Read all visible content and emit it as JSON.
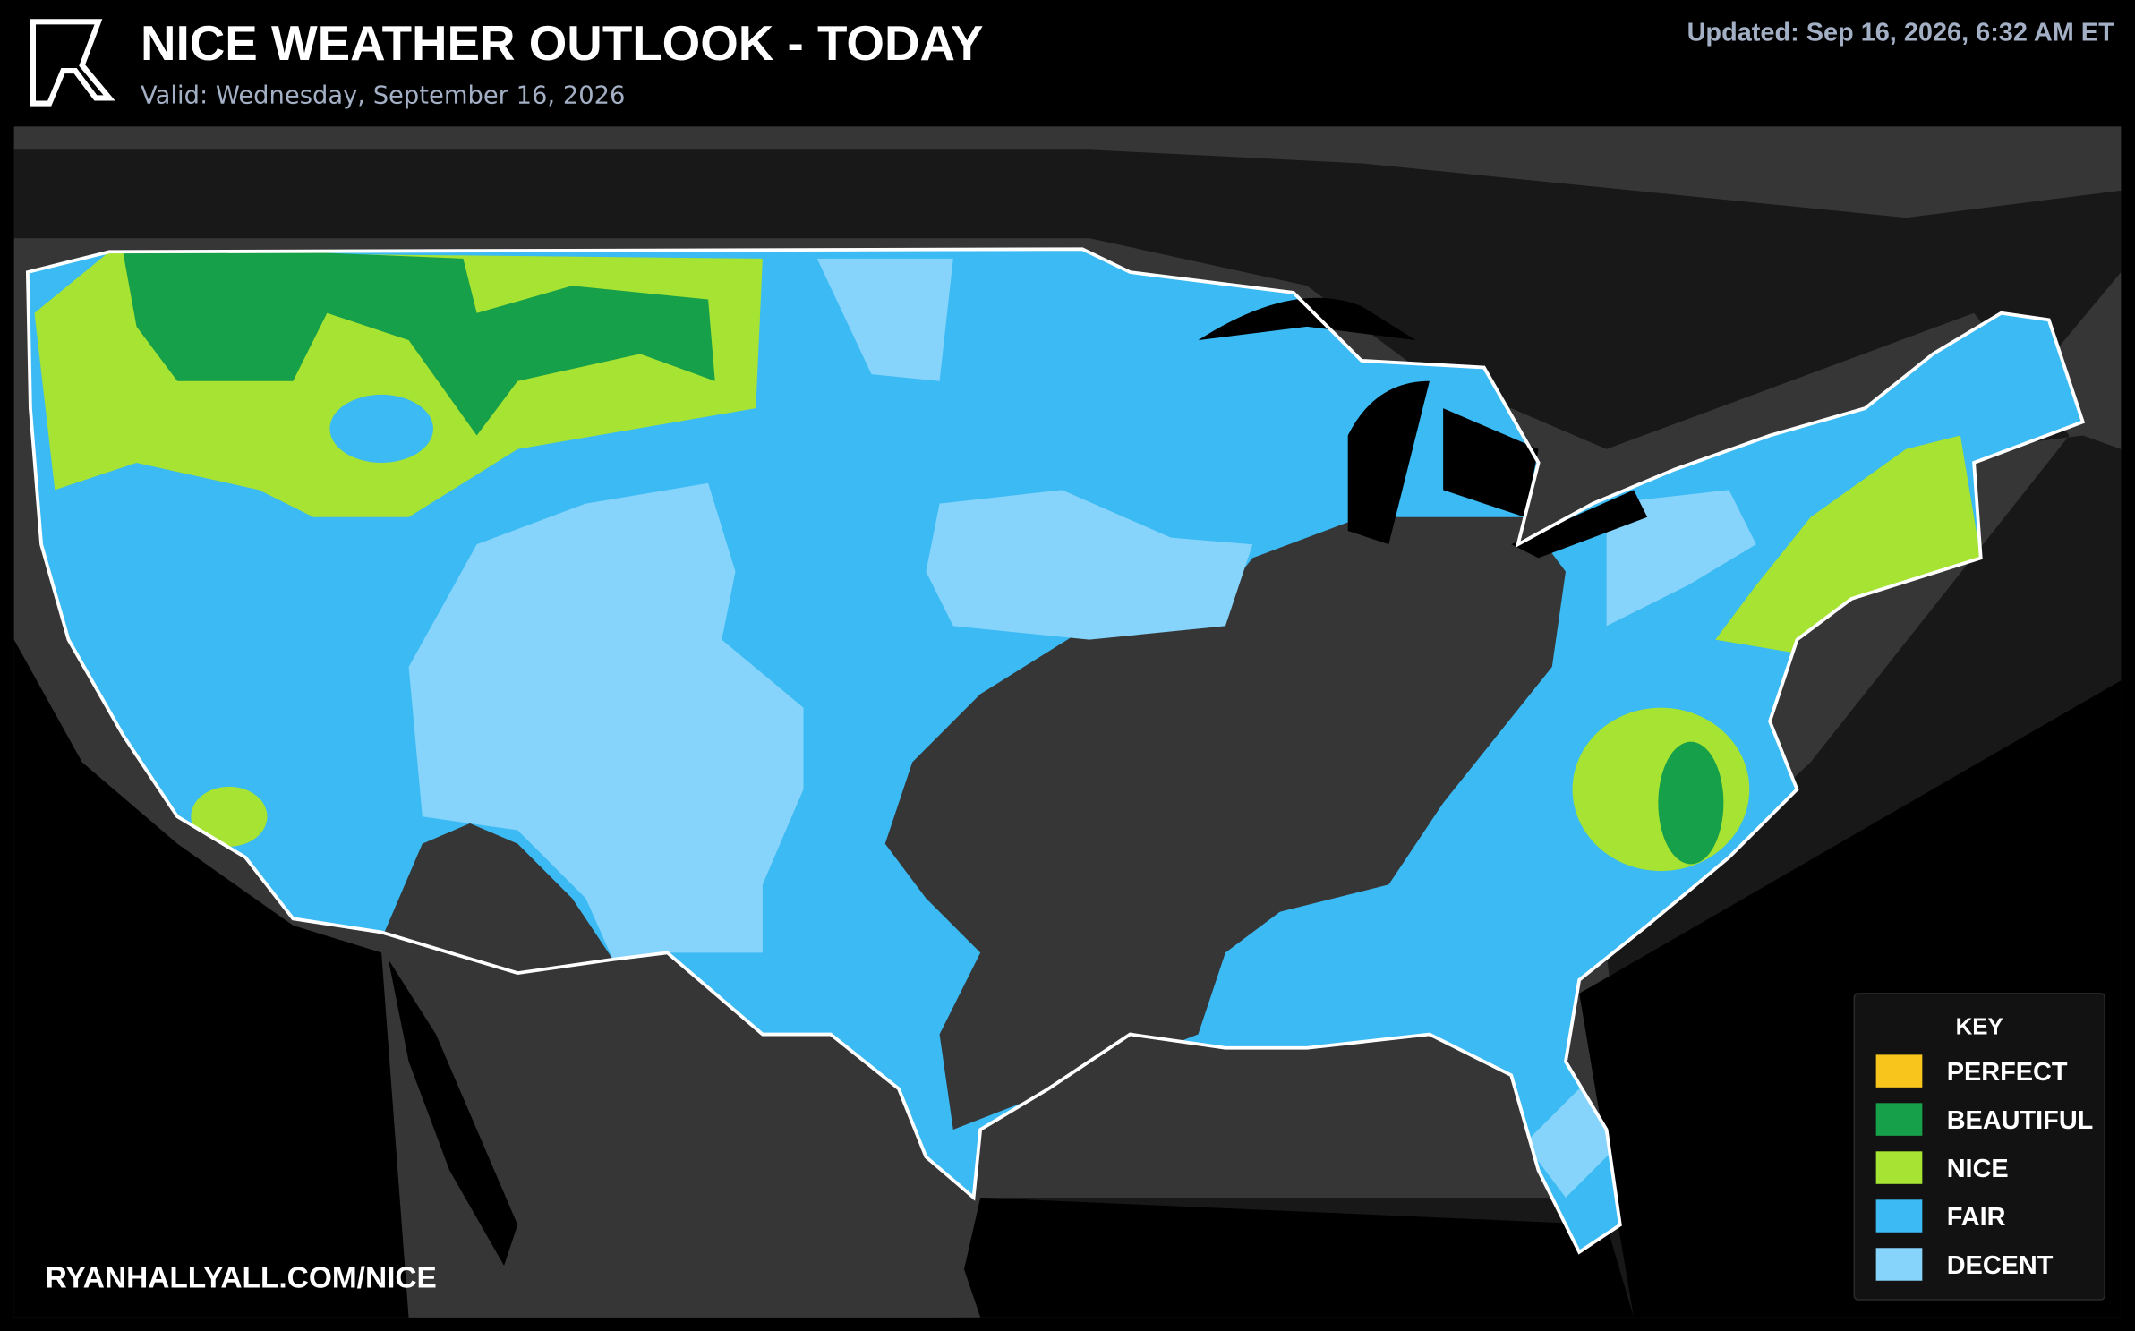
{
  "header": {
    "title": "NICE WEATHER OUTLOOK - TODAY",
    "subtitle": "Valid: Wednesday, September 16, 2026",
    "updated": "Updated: Sep 16, 2026, 6:32 AM ET"
  },
  "footer": {
    "url": "RYANHALLYALL.COM/NICE"
  },
  "legend": {
    "title": "KEY",
    "items": [
      {
        "label": "PERFECT",
        "color": "#f7c51c"
      },
      {
        "label": "BEAUTIFUL",
        "color": "#17a04a"
      },
      {
        "label": "NICE",
        "color": "#a6e332"
      },
      {
        "label": "FAIR",
        "color": "#3bbaf3"
      },
      {
        "label": "DECENT",
        "color": "#86d3fb"
      }
    ]
  }
}
